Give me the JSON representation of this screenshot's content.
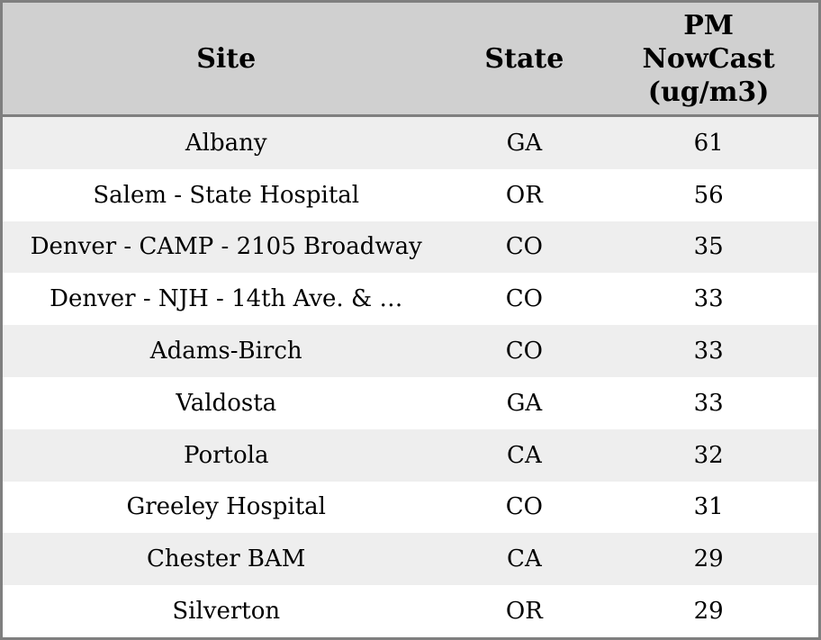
{
  "widget": {
    "header": {
      "site_label": "Site",
      "state_label": "State",
      "pm_label": "PM\nNowCast\n(ug/m3)"
    },
    "rows": [
      {
        "site": "Albany",
        "state": "GA",
        "pm": "61"
      },
      {
        "site": "Salem - State Hospital",
        "state": "OR",
        "pm": "56"
      },
      {
        "site": "Denver - CAMP - 2105 Broadway",
        "state": "CO",
        "pm": "35"
      },
      {
        "site": "Denver - NJH - 14th Ave. & …",
        "state": "CO",
        "pm": "33"
      },
      {
        "site": "Adams-Birch",
        "state": "CO",
        "pm": "33"
      },
      {
        "site": "Valdosta",
        "state": "GA",
        "pm": "33"
      },
      {
        "site": "Portola",
        "state": "CA",
        "pm": "32"
      },
      {
        "site": "Greeley Hospital",
        "state": "CO",
        "pm": "31"
      },
      {
        "site": "Chester BAM",
        "state": "CA",
        "pm": "29"
      },
      {
        "site": "Silverton",
        "state": "OR",
        "pm": "29"
      }
    ]
  },
  "colors": {
    "border": "#7f7f7f",
    "header_bg": "#d0d0d0",
    "row_stripe": "#eeeeee",
    "row_plain": "#ffffff",
    "text": "#000000"
  },
  "chart_data": {
    "type": "table",
    "columns": [
      "Site",
      "State",
      "PM NowCast (ug/m3)"
    ],
    "rows": [
      [
        "Albany",
        "GA",
        61
      ],
      [
        "Salem - State Hospital",
        "OR",
        56
      ],
      [
        "Denver - CAMP - 2105 Broadway",
        "CO",
        35
      ],
      [
        "Denver - NJH - 14th Ave. & …",
        "CO",
        33
      ],
      [
        "Adams-Birch",
        "CO",
        33
      ],
      [
        "Valdosta",
        "GA",
        33
      ],
      [
        "Portola",
        "CA",
        32
      ],
      [
        "Greeley Hospital",
        "CO",
        31
      ],
      [
        "Chester BAM",
        "CA",
        29
      ],
      [
        "Silverton",
        "OR",
        29
      ]
    ]
  }
}
